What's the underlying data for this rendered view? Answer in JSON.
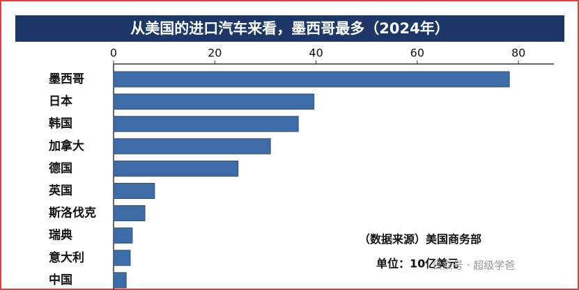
{
  "chart_data": {
    "type": "hbar",
    "title": "从美国的进口汽车来看，墨西哥最多（2024年）",
    "categories": [
      "墨西哥",
      "日本",
      "韩国",
      "加拿大",
      "德国",
      "英国",
      "斯洛伐克",
      "瑞典",
      "意大利",
      "中国"
    ],
    "values": [
      78.2,
      39.6,
      36.5,
      31.0,
      24.6,
      8.1,
      6.2,
      3.7,
      3.3,
      2.5
    ],
    "color": "#3d6ca6",
    "xlim": [
      0,
      87
    ],
    "xticks": [
      0,
      20,
      40,
      60,
      80
    ],
    "annotations": [
      "（数据来源）美国商务部",
      "单位：10亿美元"
    ],
    "watermark": "公众号 · 超级学爸"
  }
}
